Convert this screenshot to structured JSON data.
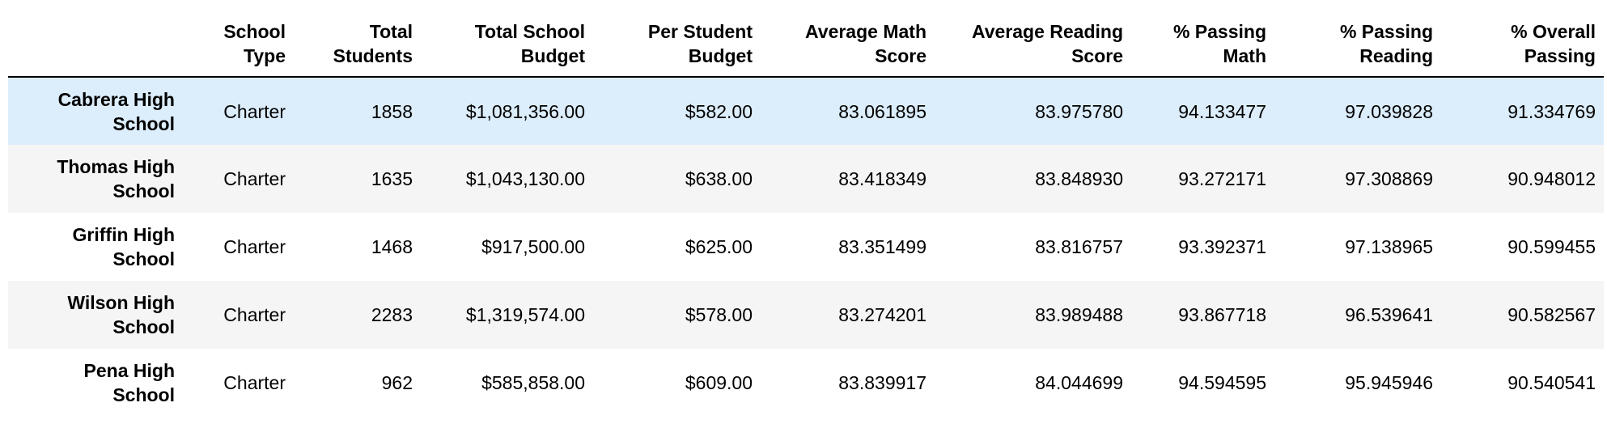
{
  "table": {
    "columns": [
      "",
      "School Type",
      "Total Students",
      "Total School Budget",
      "Per Student Budget",
      "Average Math Score",
      "Average Reading Score",
      "% Passing Math",
      "% Passing Reading",
      "% Overall Passing"
    ],
    "header_lines": [
      [
        "",
        ""
      ],
      [
        "School",
        "Type"
      ],
      [
        "Total",
        "Students"
      ],
      [
        "Total School",
        "Budget"
      ],
      [
        "Per Student",
        "Budget"
      ],
      [
        "Average Math",
        "Score"
      ],
      [
        "Average Reading",
        "Score"
      ],
      [
        "% Passing",
        "Math"
      ],
      [
        "% Passing",
        "Reading"
      ],
      [
        "% Overall",
        "Passing"
      ]
    ],
    "rows": [
      {
        "index_lines": [
          "Cabrera High",
          "School"
        ],
        "cells": [
          "Charter",
          "1858",
          "$1,081,356.00",
          "$582.00",
          "83.061895",
          "83.975780",
          "94.133477",
          "97.039828",
          "91.334769"
        ],
        "highlighted": true
      },
      {
        "index_lines": [
          "Thomas High",
          "School"
        ],
        "cells": [
          "Charter",
          "1635",
          "$1,043,130.00",
          "$638.00",
          "83.418349",
          "83.848930",
          "93.272171",
          "97.308869",
          "90.948012"
        ],
        "highlighted": false
      },
      {
        "index_lines": [
          "Griffin High",
          "School"
        ],
        "cells": [
          "Charter",
          "1468",
          "$917,500.00",
          "$625.00",
          "83.351499",
          "83.816757",
          "93.392371",
          "97.138965",
          "90.599455"
        ],
        "highlighted": false
      },
      {
        "index_lines": [
          "Wilson High",
          "School"
        ],
        "cells": [
          "Charter",
          "2283",
          "$1,319,574.00",
          "$578.00",
          "83.274201",
          "83.989488",
          "93.867718",
          "96.539641",
          "90.582567"
        ],
        "highlighted": false
      },
      {
        "index_lines": [
          "Pena High",
          "School"
        ],
        "cells": [
          "Charter",
          "962",
          "$585,858.00",
          "$609.00",
          "83.839917",
          "84.044699",
          "94.594595",
          "95.945946",
          "90.540541"
        ],
        "highlighted": false
      }
    ]
  },
  "colors": {
    "highlight_row": "#dcedfb",
    "zebra_row": "#f5f5f5",
    "header_rule": "#000000"
  }
}
